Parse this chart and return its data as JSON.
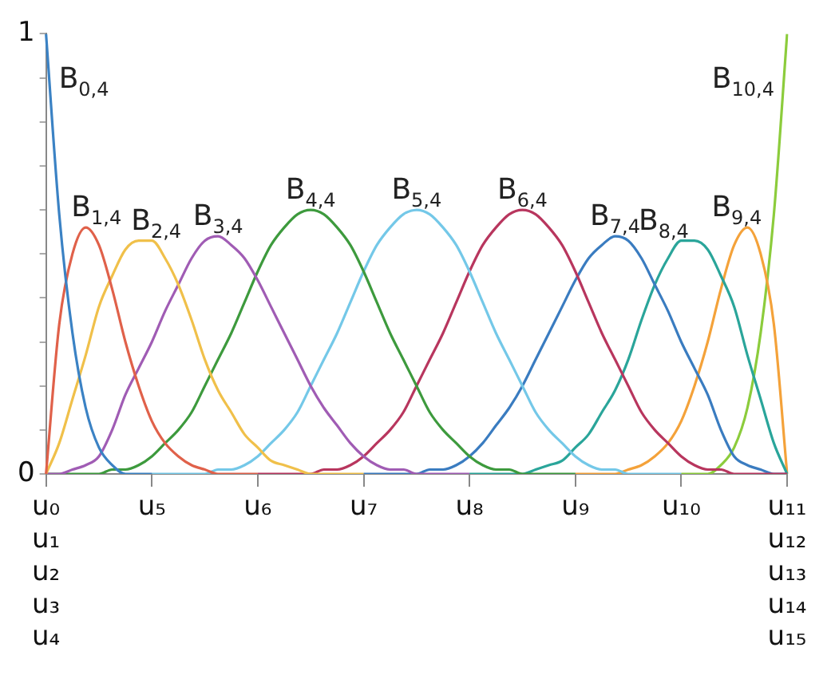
{
  "chart_data": {
    "type": "line",
    "ylim": [
      0,
      1
    ],
    "categories": [
      "u₀\nu₁\nu₂\nu₃\nu₄",
      null,
      null,
      null,
      null,
      null,
      null,
      null,
      "u₅",
      null,
      null,
      null,
      null,
      null,
      null,
      null,
      "u₆",
      null,
      null,
      null,
      null,
      null,
      null,
      null,
      "u₇",
      null,
      null,
      null,
      null,
      null,
      null,
      null,
      "u₈",
      null,
      null,
      null,
      null,
      null,
      null,
      null,
      "u₉",
      null,
      null,
      null,
      null,
      null,
      null,
      null,
      "u₁₀",
      null,
      null,
      null,
      null,
      null,
      null,
      null,
      "u₁₁\nu₁₂\nu₁₃\nu₁₄\nu₁₅"
    ],
    "yticks": [
      0,
      {
        "value": 0.1,
        "label": null
      },
      {
        "value": 0.2,
        "label": null
      },
      {
        "value": 0.3,
        "label": null
      },
      {
        "value": 0.4,
        "label": null
      },
      {
        "value": 0.5,
        "label": null
      },
      {
        "value": 0.6,
        "label": null
      },
      {
        "value": 0.7,
        "label": null
      },
      {
        "value": 0.8,
        "label": null
      },
      {
        "value": 0.9,
        "label": null
      },
      1
    ],
    "grid": false,
    "legend": false,
    "marker": "none",
    "line_style": "solid",
    "series": [
      {
        "name": "B$_{0,4}$",
        "color": "#3b82c4",
        "values": [
          1,
          0.59,
          0.32,
          0.15,
          0.06,
          0.02,
          0,
          0,
          0,
          null,
          null,
          null,
          null,
          null,
          null,
          null,
          null,
          null,
          null,
          null,
          null,
          null,
          null,
          null,
          null,
          null,
          null,
          null,
          null,
          null,
          null,
          null,
          null,
          null,
          null,
          null,
          null,
          null,
          null,
          null,
          null,
          null,
          null,
          null,
          null,
          null,
          null,
          null,
          null,
          null,
          null,
          null,
          null,
          null,
          null,
          null,
          null
        ]
      },
      {
        "name": "B$_{1,4}$",
        "color": "#e0614a",
        "values": [
          0,
          0.34,
          0.5,
          0.56,
          0.52,
          0.42,
          0.3,
          0.2,
          0.12,
          0.07,
          0.04,
          0.02,
          0.01,
          0,
          0,
          0,
          0,
          null,
          null,
          null,
          null,
          null,
          null,
          null,
          null,
          null,
          null,
          null,
          null,
          null,
          null,
          null,
          null,
          null,
          null,
          null,
          null,
          null,
          null,
          null,
          null,
          null,
          null,
          null,
          null,
          null,
          null,
          null,
          null,
          null,
          null,
          null,
          null,
          null,
          null,
          null,
          null
        ]
      },
      {
        "name": "B$_{2,4}$",
        "color": "#f0c04a",
        "values": [
          0,
          0.07,
          0.17,
          0.27,
          0.38,
          0.45,
          0.51,
          0.53,
          0.53,
          0.49,
          0.43,
          0.35,
          0.26,
          0.19,
          0.14,
          0.09,
          0.06,
          0.03,
          0.02,
          0.01,
          0,
          0,
          0,
          0,
          0,
          null,
          null,
          null,
          null,
          null,
          null,
          null,
          null,
          null,
          null,
          null,
          null,
          null,
          null,
          null,
          null,
          null,
          null,
          null,
          null,
          null,
          null,
          null,
          null,
          null,
          null,
          null,
          null,
          null,
          null,
          null,
          null
        ]
      },
      {
        "name": "B$_{3,4}$",
        "color": "#a05cb4",
        "values": [
          0,
          0,
          0.01,
          0.02,
          0.04,
          0.1,
          0.18,
          0.24,
          0.3,
          0.37,
          0.43,
          0.49,
          0.53,
          0.54,
          0.52,
          0.49,
          0.44,
          0.38,
          0.32,
          0.26,
          0.2,
          0.15,
          0.11,
          0.07,
          0.04,
          0.02,
          0.01,
          0.01,
          0,
          0,
          0,
          0,
          0,
          null,
          null,
          null,
          null,
          null,
          null,
          null,
          null,
          null,
          null,
          null,
          null,
          null,
          null,
          null,
          null,
          null,
          null,
          null,
          null,
          null,
          null,
          null,
          null
        ]
      },
      {
        "name": "B$_{4,4}$",
        "color": "#3d9a3d",
        "values": [
          0,
          0,
          0,
          0,
          0,
          0.01,
          0.01,
          0.02,
          0.04,
          0.07,
          0.1,
          0.14,
          0.2,
          0.26,
          0.32,
          0.39,
          0.46,
          0.52,
          0.56,
          0.59,
          0.6,
          0.59,
          0.56,
          0.52,
          0.46,
          0.39,
          0.32,
          0.26,
          0.2,
          0.14,
          0.1,
          0.07,
          0.04,
          0.02,
          0.01,
          0.01,
          0,
          0,
          0,
          0,
          0,
          null,
          null,
          null,
          null,
          null,
          null,
          null,
          null,
          null,
          null,
          null,
          null,
          null,
          null,
          null,
          null
        ]
      },
      {
        "name": "B$_{5,4}$",
        "color": "#74c8e8",
        "values": [
          null,
          null,
          null,
          null,
          null,
          null,
          null,
          null,
          0,
          0,
          0,
          0,
          0,
          0.01,
          0.01,
          0.02,
          0.04,
          0.07,
          0.1,
          0.14,
          0.2,
          0.26,
          0.32,
          0.39,
          0.46,
          0.52,
          0.56,
          0.59,
          0.6,
          0.59,
          0.56,
          0.52,
          0.46,
          0.39,
          0.32,
          0.26,
          0.2,
          0.14,
          0.1,
          0.07,
          0.04,
          0.02,
          0.01,
          0.01,
          0,
          0,
          0,
          0,
          0,
          null,
          null,
          null,
          null,
          null,
          null,
          null,
          null
        ]
      },
      {
        "name": "B$_{6,4}$",
        "color": "#b8365e",
        "values": [
          null,
          null,
          null,
          null,
          null,
          null,
          null,
          null,
          null,
          null,
          null,
          null,
          null,
          null,
          null,
          null,
          0,
          0,
          0,
          0,
          0,
          0.01,
          0.01,
          0.02,
          0.04,
          0.07,
          0.1,
          0.14,
          0.2,
          0.26,
          0.32,
          0.39,
          0.46,
          0.52,
          0.56,
          0.59,
          0.6,
          0.59,
          0.56,
          0.52,
          0.46,
          0.39,
          0.32,
          0.26,
          0.2,
          0.14,
          0.1,
          0.07,
          0.04,
          0.02,
          0.01,
          0.01,
          0,
          0,
          0,
          0,
          0
        ]
      },
      {
        "name": "B$_{7,4}$",
        "color": "#3a7cc0",
        "values": [
          null,
          null,
          null,
          null,
          null,
          null,
          null,
          null,
          null,
          null,
          null,
          null,
          null,
          null,
          null,
          null,
          null,
          null,
          null,
          null,
          null,
          null,
          null,
          null,
          0,
          0,
          0,
          0,
          0,
          0.01,
          0.01,
          0.02,
          0.04,
          0.07,
          0.11,
          0.15,
          0.2,
          0.26,
          0.32,
          0.38,
          0.44,
          0.49,
          0.52,
          0.54,
          0.53,
          0.49,
          0.43,
          0.37,
          0.3,
          0.24,
          0.18,
          0.1,
          0.04,
          0.02,
          0.01,
          0,
          0
        ]
      },
      {
        "name": "B$_{8,4}$",
        "color": "#2aa59a",
        "values": [
          null,
          null,
          null,
          null,
          null,
          null,
          null,
          null,
          null,
          null,
          null,
          null,
          null,
          null,
          null,
          null,
          null,
          null,
          null,
          null,
          null,
          null,
          null,
          null,
          null,
          null,
          null,
          null,
          null,
          null,
          null,
          null,
          0,
          0,
          0,
          0,
          0,
          0.01,
          0.02,
          0.03,
          0.06,
          0.09,
          0.14,
          0.19,
          0.26,
          0.35,
          0.43,
          0.49,
          0.53,
          0.53,
          0.51,
          0.45,
          0.38,
          0.27,
          0.17,
          0.07,
          0
        ]
      },
      {
        "name": "B$_{9,4}$",
        "color": "#f4a23a",
        "values": [
          null,
          null,
          null,
          null,
          null,
          null,
          null,
          null,
          null,
          null,
          null,
          null,
          null,
          null,
          null,
          null,
          null,
          null,
          null,
          null,
          null,
          null,
          null,
          null,
          null,
          null,
          null,
          null,
          null,
          null,
          null,
          null,
          null,
          null,
          null,
          null,
          null,
          null,
          null,
          null,
          0,
          0,
          0,
          0,
          0.01,
          0.02,
          0.04,
          0.07,
          0.12,
          0.2,
          0.3,
          0.42,
          0.52,
          0.56,
          0.5,
          0.34,
          0
        ]
      },
      {
        "name": "B$_{10,4}$",
        "color": "#8ccc3c",
        "values": [
          null,
          null,
          null,
          null,
          null,
          null,
          null,
          null,
          null,
          null,
          null,
          null,
          null,
          null,
          null,
          null,
          null,
          null,
          null,
          null,
          null,
          null,
          null,
          null,
          null,
          null,
          null,
          null,
          null,
          null,
          null,
          null,
          null,
          null,
          null,
          null,
          null,
          null,
          null,
          null,
          null,
          null,
          null,
          null,
          null,
          null,
          null,
          null,
          0,
          0,
          0,
          0.02,
          0.06,
          0.15,
          0.32,
          0.59,
          1
        ]
      }
    ]
  }
}
